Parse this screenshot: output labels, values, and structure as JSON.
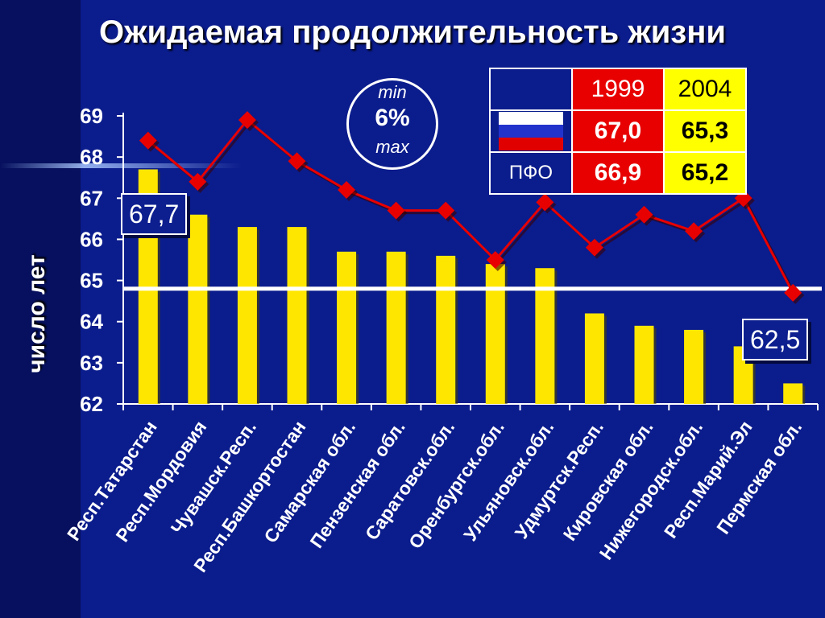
{
  "title": "Ожидаемая продолжительность  жизни",
  "colors": {
    "background": "#0b1c8c",
    "bar": "#ffe600",
    "line": "#e80000",
    "marker": "#e80000"
  },
  "annotations": {
    "max_label": "67,7",
    "min_label": "62,5",
    "circle": {
      "min": "min",
      "percent": "6%",
      "max": "max"
    }
  },
  "legend_table": {
    "header": [
      "1999",
      "2004"
    ],
    "rows": [
      {
        "flag": "russia-flag-icon",
        "label": "",
        "values": [
          "67,0",
          "65,3"
        ]
      },
      {
        "flag": "",
        "label": "ПФО",
        "values": [
          "66,9",
          "65,2"
        ]
      }
    ]
  },
  "chart_data": {
    "type": "bar",
    "ylabel": "число лет",
    "xlabel": "",
    "ylim": [
      62,
      69
    ],
    "yticks": [
      "62",
      "63",
      "64",
      "65",
      "66",
      "67",
      "68",
      "69"
    ],
    "categories": [
      "Респ.Татарстан",
      "Респ.Мордовия",
      "Чувашск.Респ.",
      "Респ.Башкортостан",
      "Самарская обл.",
      "Пензенская обл.",
      "Саратовск.обл.",
      "Оренбургск.обл.",
      "Ульяновск.обл.",
      "Удмуртск.Респ.",
      "Кировская обл.",
      "Нижегородск.обл.",
      "Респ.Марий.Эл",
      "Пермская обл."
    ],
    "series": [
      {
        "type": "bar",
        "values": [
          67.7,
          66.6,
          66.3,
          66.3,
          65.7,
          65.7,
          65.6,
          65.4,
          65.3,
          64.2,
          63.9,
          63.8,
          63.4,
          62.5
        ]
      },
      {
        "type": "line",
        "values": [
          68.4,
          67.4,
          68.9,
          67.9,
          67.2,
          66.7,
          66.7,
          65.5,
          66.9,
          65.8,
          66.6,
          66.2,
          67.0,
          64.7
        ]
      }
    ],
    "reference_line": 64.8,
    "grid": false
  }
}
